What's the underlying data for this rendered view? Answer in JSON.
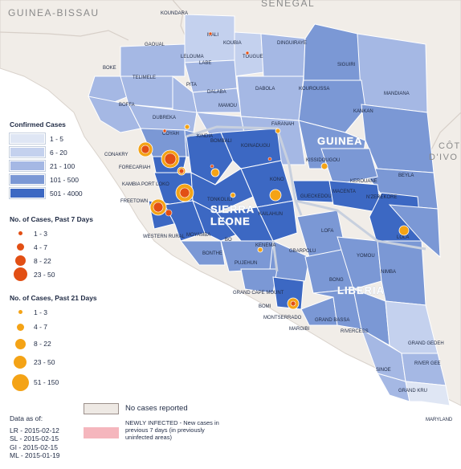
{
  "countries": {
    "guinea_bissau": "GUINEA-BISSAU",
    "senegal": "SENEGAL",
    "mali": "MALI",
    "guinea": "GUINEA",
    "sierra_leone_1": "SIERRA",
    "sierra_leone_2": "LEONE",
    "liberia": "LIBERIA",
    "cote_divoire_1": "CÔT",
    "cote_divoire_2": "D'IVO"
  },
  "districts": [
    "KOUNDARA",
    "MALI",
    "KOUBIA",
    "TOUGUE",
    "GAOUAL",
    "LELOUMA",
    "LABE",
    "DINGUIRAYE",
    "SIGUIRI",
    "BOKE",
    "TELIMELE",
    "PITA",
    "DALABA",
    "DABOLA",
    "KOUROUSSA",
    "MANDIANA",
    "BOFFA",
    "MAMOU",
    "KANKAN",
    "DUBREKA",
    "COYAH",
    "KINDIA",
    "FARANAH",
    "CONAKRY",
    "FORECARIAH",
    "BOMBALI",
    "KOINADUGU",
    "KISSIDOUGOU",
    "KEROUANE",
    "BEYLA",
    "KAMBIA PORT LOKO",
    "TONKOLILI",
    "KONO",
    "GUECKEDOU",
    "MACENTA",
    "N'ZEREKORE",
    "FREETOWN",
    "WESTERN RURAL",
    "MOYAMBA",
    "BO",
    "KENEMA",
    "KAILAHUN",
    "LOFA",
    "LOLA",
    "BONTHE",
    "PUJEHUN",
    "GBARPOLU",
    "YOMOU",
    "GRAND CAPE MOUNT",
    "BOMI",
    "BONG",
    "NIMBA",
    "MONTSERRADO",
    "MARGIBI",
    "GRAND BASSA",
    "RIVERCESS",
    "GRAND GEDEH",
    "SINOE",
    "RIVER GEE",
    "GRAND KRU",
    "MARYLAND"
  ],
  "legend_confirmed": {
    "title": "Confirmed Cases",
    "items": [
      {
        "label": "1 - 5",
        "color": "#dfe6f4"
      },
      {
        "label": "6 - 20",
        "color": "#c4d1ee"
      },
      {
        "label": "21 - 100",
        "color": "#a5b8e4"
      },
      {
        "label": "101 - 500",
        "color": "#7b98d5"
      },
      {
        "label": "501 - 4000",
        "color": "#3c68c3"
      }
    ]
  },
  "legend_7days": {
    "title": "No. of Cases, Past 7 Days",
    "items": [
      {
        "label": "1 - 3",
        "size": 5,
        "color": "#e24f14"
      },
      {
        "label": "4 - 7",
        "size": 9,
        "color": "#e24f14"
      },
      {
        "label": "8 - 22",
        "size": 13,
        "color": "#e24f14"
      },
      {
        "label": "23 - 50",
        "size": 17,
        "color": "#e24f14"
      }
    ]
  },
  "legend_21days": {
    "title": "No. of Cases, Past 21 Days",
    "items": [
      {
        "label": "1 - 3",
        "size": 5,
        "color": "#f4a316"
      },
      {
        "label": "4 - 7",
        "size": 9,
        "color": "#f4a316"
      },
      {
        "label": "8 - 22",
        "size": 13,
        "color": "#f4a316"
      },
      {
        "label": "23 - 50",
        "size": 16,
        "color": "#f4a316"
      },
      {
        "label": "51 - 150",
        "size": 21,
        "color": "#f4a316"
      }
    ]
  },
  "as_of": {
    "title": "Data as of:",
    "lines": [
      "LR - 2015-02-12",
      "SL - 2015-02-15",
      "GI - 2015-02-15",
      "ML - 2015-01-19"
    ]
  },
  "no_cases": {
    "label": "No cases reported",
    "color": "#eee9e4"
  },
  "newly_infected": {
    "label": "NEWLY INFECTED - New cases in previous 7 days (in previously uninfected areas)",
    "color": "#f5b6bd"
  }
}
